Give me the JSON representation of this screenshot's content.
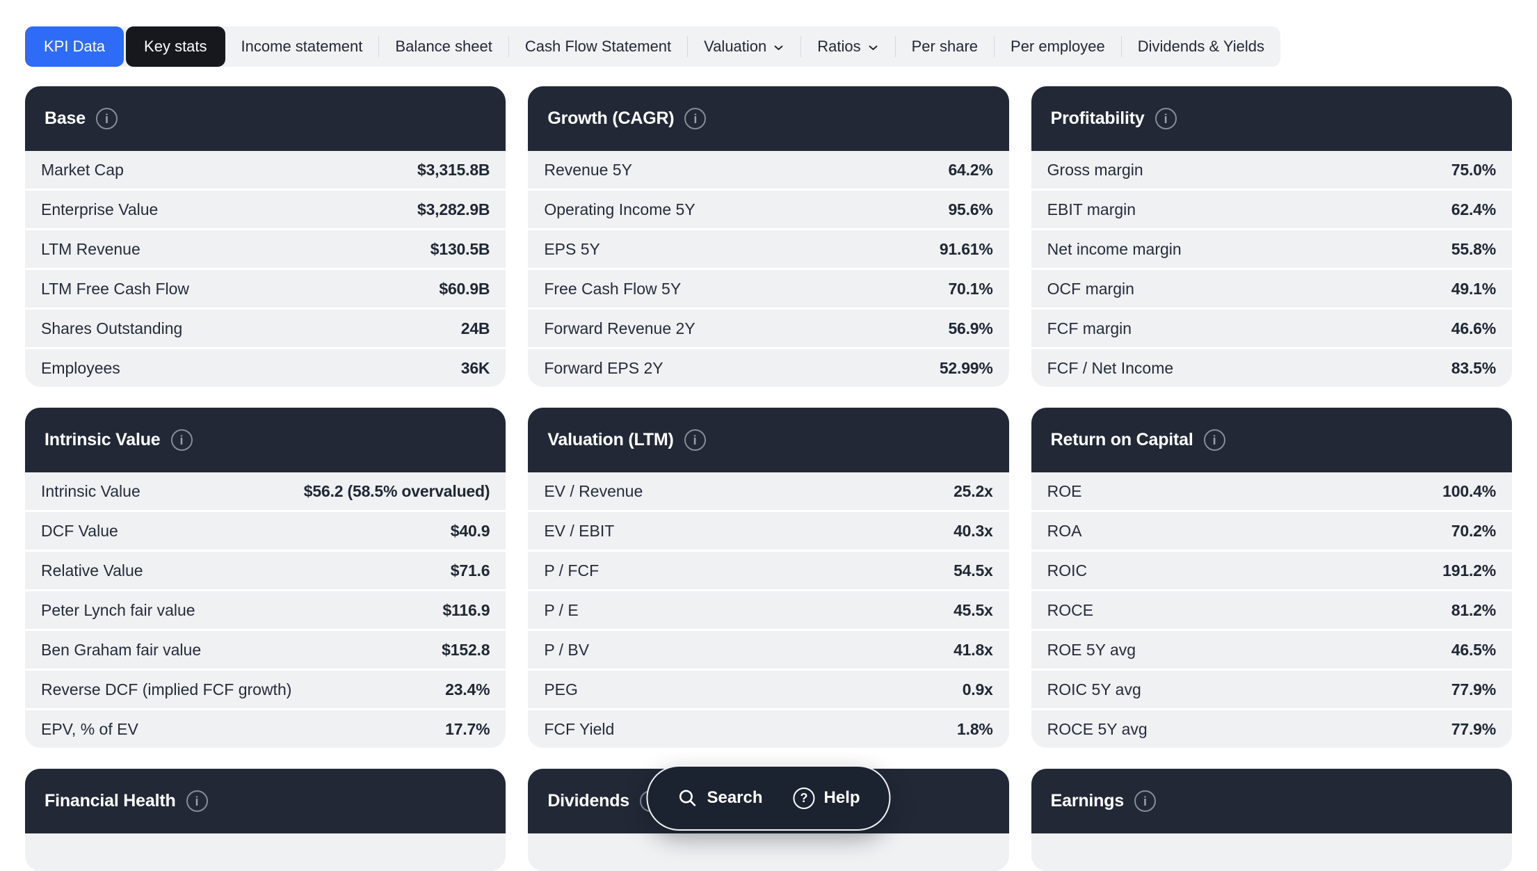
{
  "nav": {
    "tabs": [
      {
        "label": "KPI Data",
        "style": "primary"
      },
      {
        "label": "Key stats",
        "style": "dark"
      },
      {
        "label": "Income statement"
      },
      {
        "label": "Balance sheet"
      },
      {
        "label": "Cash Flow Statement"
      },
      {
        "label": "Valuation",
        "dropdown": true
      },
      {
        "label": "Ratios",
        "dropdown": true
      },
      {
        "label": "Per share"
      },
      {
        "label": "Per employee"
      },
      {
        "label": "Dividends & Yields"
      }
    ]
  },
  "cards": [
    {
      "title": "Base",
      "rows": [
        {
          "label": "Market Cap",
          "value": "$3,315.8B"
        },
        {
          "label": "Enterprise Value",
          "value": "$3,282.9B"
        },
        {
          "label": "LTM Revenue",
          "value": "$130.5B"
        },
        {
          "label": "LTM Free Cash Flow",
          "value": "$60.9B"
        },
        {
          "label": "Shares Outstanding",
          "value": "24B"
        },
        {
          "label": "Employees",
          "value": "36K"
        }
      ]
    },
    {
      "title": "Growth (CAGR)",
      "rows": [
        {
          "label": "Revenue 5Y",
          "value": "64.2%"
        },
        {
          "label": "Operating Income 5Y",
          "value": "95.6%"
        },
        {
          "label": "EPS 5Y",
          "value": "91.61%"
        },
        {
          "label": "Free Cash Flow 5Y",
          "value": "70.1%"
        },
        {
          "label": "Forward Revenue 2Y",
          "value": "56.9%"
        },
        {
          "label": "Forward EPS 2Y",
          "value": "52.99%"
        }
      ]
    },
    {
      "title": "Profitability",
      "rows": [
        {
          "label": "Gross margin",
          "value": "75.0%"
        },
        {
          "label": "EBIT margin",
          "value": "62.4%"
        },
        {
          "label": "Net income margin",
          "value": "55.8%"
        },
        {
          "label": "OCF margin",
          "value": "49.1%"
        },
        {
          "label": "FCF margin",
          "value": "46.6%"
        },
        {
          "label": "FCF / Net Income",
          "value": "83.5%"
        }
      ]
    },
    {
      "title": "Intrinsic Value",
      "rows": [
        {
          "label": "Intrinsic Value",
          "value": "$56.2 (58.5% overvalued)"
        },
        {
          "label": "DCF Value",
          "value": "$40.9"
        },
        {
          "label": "Relative Value",
          "value": "$71.6"
        },
        {
          "label": "Peter Lynch fair value",
          "value": "$116.9"
        },
        {
          "label": "Ben Graham fair value",
          "value": "$152.8"
        },
        {
          "label": "Reverse DCF (implied FCF growth)",
          "value": "23.4%"
        },
        {
          "label": "EPV, % of EV",
          "value": "17.7%"
        }
      ]
    },
    {
      "title": "Valuation (LTM)",
      "rows": [
        {
          "label": "EV / Revenue",
          "value": "25.2x"
        },
        {
          "label": "EV / EBIT",
          "value": "40.3x"
        },
        {
          "label": "P / FCF",
          "value": "54.5x"
        },
        {
          "label": "P / E",
          "value": "45.5x"
        },
        {
          "label": "P / BV",
          "value": "41.8x"
        },
        {
          "label": "PEG",
          "value": "0.9x"
        },
        {
          "label": "FCF Yield",
          "value": "1.8%"
        }
      ]
    },
    {
      "title": "Return on Capital",
      "rows": [
        {
          "label": "ROE",
          "value": "100.4%"
        },
        {
          "label": "ROA",
          "value": "70.2%"
        },
        {
          "label": "ROIC",
          "value": "191.2%"
        },
        {
          "label": "ROCE",
          "value": "81.2%"
        },
        {
          "label": "ROE 5Y avg",
          "value": "46.5%"
        },
        {
          "label": "ROIC 5Y avg",
          "value": "77.9%"
        },
        {
          "label": "ROCE 5Y avg",
          "value": "77.9%"
        }
      ]
    },
    {
      "title": "Financial Health",
      "rows": [
        {
          "label": "",
          "value": ""
        }
      ]
    },
    {
      "title": "Dividends",
      "rows": [
        {
          "label": "",
          "value": ""
        }
      ]
    },
    {
      "title": "Earnings",
      "rows": [
        {
          "label": "",
          "value": ""
        }
      ]
    }
  ],
  "floating_toolbar": {
    "search_label": "Search",
    "help_label": "Help"
  },
  "icons": {
    "info_glyph": "i",
    "help_glyph": "?"
  },
  "colors": {
    "accent_blue": "#2e6bf6",
    "dark_button": "#16181d",
    "card_header": "#222836",
    "row_bg": "#f0f1f3",
    "nav_bg": "#f1f2f4",
    "text_dark": "#222b3a",
    "pill_bg": "#1c2330"
  }
}
